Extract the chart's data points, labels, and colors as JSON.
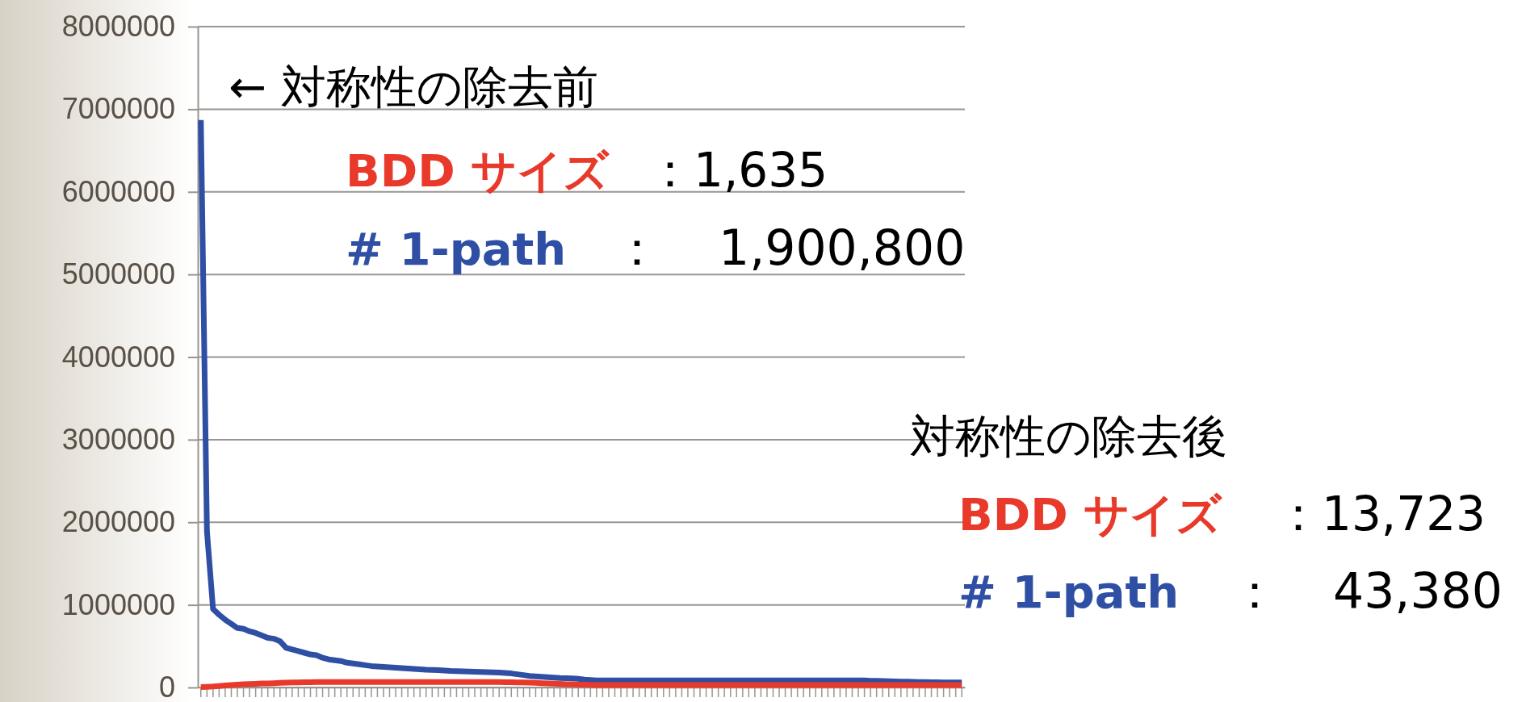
{
  "chart_data": {
    "type": "line",
    "categories": [
      null,
      null,
      null,
      null,
      null,
      null,
      null,
      null,
      null,
      null,
      null,
      null,
      null,
      null,
      null,
      null,
      null,
      null,
      null,
      null,
      null,
      null,
      null,
      null,
      null,
      null,
      null,
      null,
      null,
      null,
      null,
      null,
      null,
      null,
      null,
      null,
      null,
      null,
      null,
      null,
      null,
      null,
      null,
      null,
      null,
      null,
      null,
      null,
      null,
      null,
      null,
      null,
      null,
      null,
      null,
      null,
      null,
      null,
      null,
      null,
      null,
      null,
      null,
      null,
      null,
      null,
      null,
      null,
      null,
      null,
      null,
      null,
      null,
      null,
      null,
      null,
      null,
      null,
      null,
      null,
      null,
      null,
      null,
      null,
      null,
      null,
      null,
      null,
      null,
      null,
      null,
      null,
      null,
      null,
      null,
      null,
      null,
      null,
      null,
      null,
      null,
      null,
      null,
      null,
      null,
      null,
      null,
      null,
      null,
      null,
      null,
      null,
      null,
      null,
      null,
      null,
      null,
      null,
      null,
      null,
      null,
      null,
      null,
      null,
      null,
      null
    ],
    "series": [
      {
        "color": "#2e4fa3",
        "values": [
          6870000,
          1890000,
          950000,
          880000,
          820000,
          770000,
          720000,
          710000,
          680000,
          660000,
          630000,
          600000,
          590000,
          560000,
          480000,
          460000,
          440000,
          420000,
          400000,
          390000,
          360000,
          340000,
          330000,
          320000,
          300000,
          290000,
          280000,
          270000,
          260000,
          255000,
          250000,
          245000,
          240000,
          235000,
          230000,
          225000,
          220000,
          215000,
          212000,
          210000,
          205000,
          200000,
          198000,
          195000,
          192000,
          190000,
          188000,
          185000,
          182000,
          180000,
          175000,
          170000,
          160000,
          150000,
          140000,
          135000,
          130000,
          125000,
          120000,
          115000,
          112000,
          110000,
          105000,
          95000,
          90000,
          85000,
          85000,
          85000,
          85000,
          85000,
          85000,
          85000,
          85000,
          85000,
          85000,
          85000,
          85000,
          85000,
          85000,
          85000,
          85000,
          85000,
          85000,
          85000,
          85000,
          85000,
          85000,
          85000,
          85000,
          85000,
          85000,
          85000,
          85000,
          85000,
          85000,
          85000,
          85000,
          85000,
          85000,
          85000,
          85000,
          85000,
          85000,
          85000,
          85000,
          85000,
          85000,
          85000,
          85000,
          85000,
          80000,
          80000,
          78000,
          76000,
          74000,
          72000,
          70000,
          68000,
          66000,
          65000,
          64000,
          63000,
          62000,
          61000,
          60000,
          60000
        ]
      },
      {
        "color": "#e8392a",
        "values": [
          5000,
          8000,
          12000,
          18000,
          25000,
          30000,
          35000,
          38000,
          42000,
          45000,
          48000,
          50000,
          52000,
          55000,
          58000,
          60000,
          62000,
          63000,
          64000,
          65000,
          65000,
          65000,
          65000,
          65000,
          65000,
          65000,
          65000,
          65000,
          65000,
          65000,
          65000,
          65000,
          65000,
          65000,
          65000,
          65000,
          65000,
          65000,
          65000,
          65000,
          65000,
          65000,
          65000,
          65000,
          65000,
          65000,
          65000,
          65000,
          65000,
          65000,
          64000,
          63000,
          62000,
          60000,
          58000,
          55000,
          52000,
          50000,
          47000,
          44000,
          40000,
          38000,
          35000,
          33000,
          31000,
          30000,
          30000,
          30000,
          30000,
          30000,
          30000,
          30000,
          30000,
          30000,
          30000,
          30000,
          30000,
          30000,
          30000,
          30000,
          30000,
          30000,
          30000,
          30000,
          30000,
          30000,
          30000,
          30000,
          30000,
          30000,
          30000,
          30000,
          30000,
          30000,
          30000,
          30000,
          30000,
          30000,
          30000,
          30000,
          30000,
          30000,
          30000,
          30000,
          30000,
          30000,
          30000,
          30000,
          30000,
          30000,
          30000,
          30000,
          30000,
          30000,
          30000,
          30000,
          30000,
          30000,
          30000,
          30000,
          30000,
          30000,
          30000,
          30000,
          30000,
          30000
        ]
      }
    ],
    "ylim": [
      0,
      8000000
    ],
    "yticks": [
      0,
      1000000,
      2000000,
      3000000,
      4000000,
      5000000,
      6000000,
      7000000,
      8000000
    ],
    "grid": "y",
    "legend": false,
    "marker": "none",
    "line_style": "solid",
    "annotations": [
      "← 対称性の除去前",
      "BDD サイズ",
      "：1,635",
      "# 1-path",
      "：",
      "1,900,800",
      "対称性の除去後",
      "BDD サイズ",
      "：13,723",
      "# 1-path",
      "：",
      "43,380"
    ]
  }
}
